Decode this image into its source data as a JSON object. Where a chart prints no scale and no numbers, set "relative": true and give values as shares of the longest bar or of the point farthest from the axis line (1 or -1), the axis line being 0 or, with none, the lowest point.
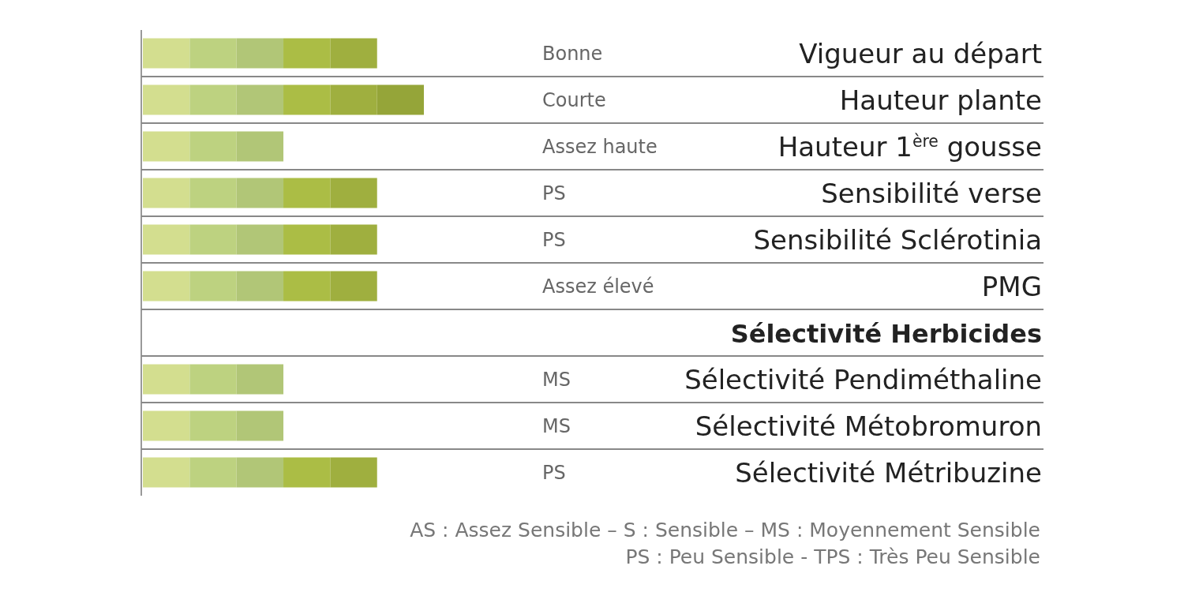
{
  "chart_data": {
    "type": "bar",
    "orientation": "horizontal",
    "stacked": true,
    "relative": true,
    "categories": [
      "Vigueur au départ",
      "Hauteur plante",
      "Hauteur 1$^{ère}$ gousse",
      "Sensibilité verse",
      "Sensibilité Sclérotinia",
      "PMG",
      "Sélectivité Herbicides",
      "Sélectivité Pendiméthaline",
      "Sélectivité Métobromuron",
      "Sélectivité Métribuzine"
    ],
    "series": [
      {
        "color": "#d3de8f",
        "values": [
          0.1667,
          0.1667,
          0.1667,
          0.1667,
          0.1667,
          0.1667,
          null,
          0.1667,
          0.1667,
          0.1667
        ]
      },
      {
        "color": "#bdd280",
        "values": [
          0.1667,
          0.1667,
          0.1667,
          0.1667,
          0.1667,
          0.1667,
          null,
          0.1667,
          0.1667,
          0.1667
        ]
      },
      {
        "color": "#b1c677",
        "values": [
          0.1667,
          0.1667,
          0.1667,
          0.1667,
          0.1667,
          0.1667,
          null,
          0.1667,
          0.1667,
          0.1667
        ]
      },
      {
        "color": "#abbd45",
        "values": [
          0.1667,
          0.1667,
          null,
          0.1667,
          0.1667,
          0.1667,
          null,
          null,
          null,
          0.1667
        ]
      },
      {
        "color": "#9faf3f",
        "values": [
          0.1667,
          0.1667,
          null,
          0.1667,
          0.1667,
          0.1667,
          null,
          null,
          null,
          0.1667
        ]
      },
      {
        "color": "#95a539",
        "values": [
          null,
          0.1665,
          null,
          null,
          null,
          null,
          null,
          null,
          null,
          null
        ]
      }
    ],
    "annotations": [
      "Bonne",
      "Courte",
      "Assez haute",
      "PS",
      "PS",
      "Assez élevé",
      "MS",
      "MS",
      "PS",
      "AS : Assez Sensible –  S : Sensible – MS : Moyennement Sensible",
      "PS : Peu Sensible - TPS : Très Peu Sensible"
    ]
  }
}
